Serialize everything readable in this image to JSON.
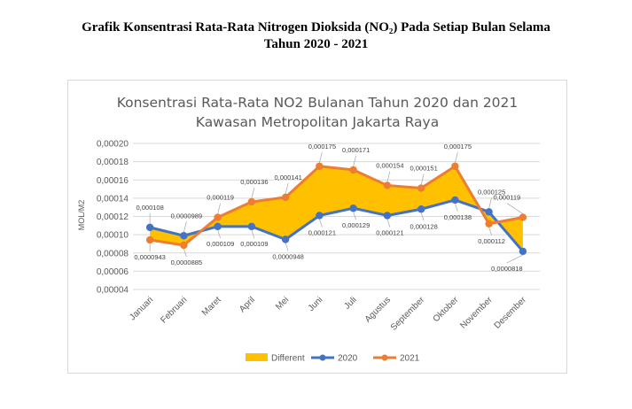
{
  "document": {
    "heading_line1": "Grafik Konsentrasi Rata-Rata Nitrogen Dioksida (NO₂) Pada Setiap Bulan Selama",
    "heading_line2": "Tahun 2020 - 2021"
  },
  "chart_data": {
    "type": "line",
    "title_line1": "Konsentrasi Rata-Rata NO2 Bulanan Tahun 2020 dan 2021",
    "title_line2": "Kawasan Metropolitan Jakarta Raya",
    "ylabel": "MOL/M2",
    "xlabel": "",
    "ylim": [
      4e-05,
      0.0002
    ],
    "yticks": [
      "0,00004",
      "0,00006",
      "0,00008",
      "0,00010",
      "0,00012",
      "0,00014",
      "0,00016",
      "0,00018",
      "0,00020"
    ],
    "ytick_values": [
      4e-05,
      6e-05,
      8e-05,
      0.0001,
      0.00012,
      0.00014,
      0.00016,
      0.00018,
      0.0002
    ],
    "grid": true,
    "legend_placement": "bottom",
    "categories": [
      "Januari",
      "Februari",
      "Maret",
      "April",
      "Mei",
      "Juni",
      "Juli",
      "Agustus",
      "September",
      "Oktober",
      "November",
      "Desember"
    ],
    "series": [
      {
        "name": "2020",
        "color": "#4472C4",
        "values": [
          0.000108,
          9.89e-05,
          0.000109,
          0.000109,
          9.48e-05,
          0.000121,
          0.000129,
          0.000121,
          0.000128,
          0.000138,
          0.000125,
          8.18e-05
        ],
        "labels": [
          "0,000108",
          "0,0000989",
          "0,000109",
          "0,000109",
          "0,0000948",
          "0,000121",
          "0,000129",
          "0,000121",
          "0,000128",
          "0,000138",
          "0,000125",
          "0,0000818"
        ]
      },
      {
        "name": "2021",
        "color": "#ED7D31",
        "values": [
          9.43e-05,
          8.85e-05,
          0.000119,
          0.000136,
          0.000141,
          0.000175,
          0.000171,
          0.000154,
          0.000151,
          0.000175,
          0.000112,
          0.000119
        ],
        "labels": [
          "0,0000943",
          "0,0000885",
          "0,000119",
          "0,000136",
          "0,000141",
          "0,000175",
          "0,000171",
          "0,000154",
          "0,000151",
          "0,000175",
          "0,000112",
          "0,000119"
        ]
      }
    ],
    "area": {
      "name": "Different",
      "color": "#FFC000"
    },
    "legend": [
      "Different",
      "2020",
      "2021"
    ]
  }
}
